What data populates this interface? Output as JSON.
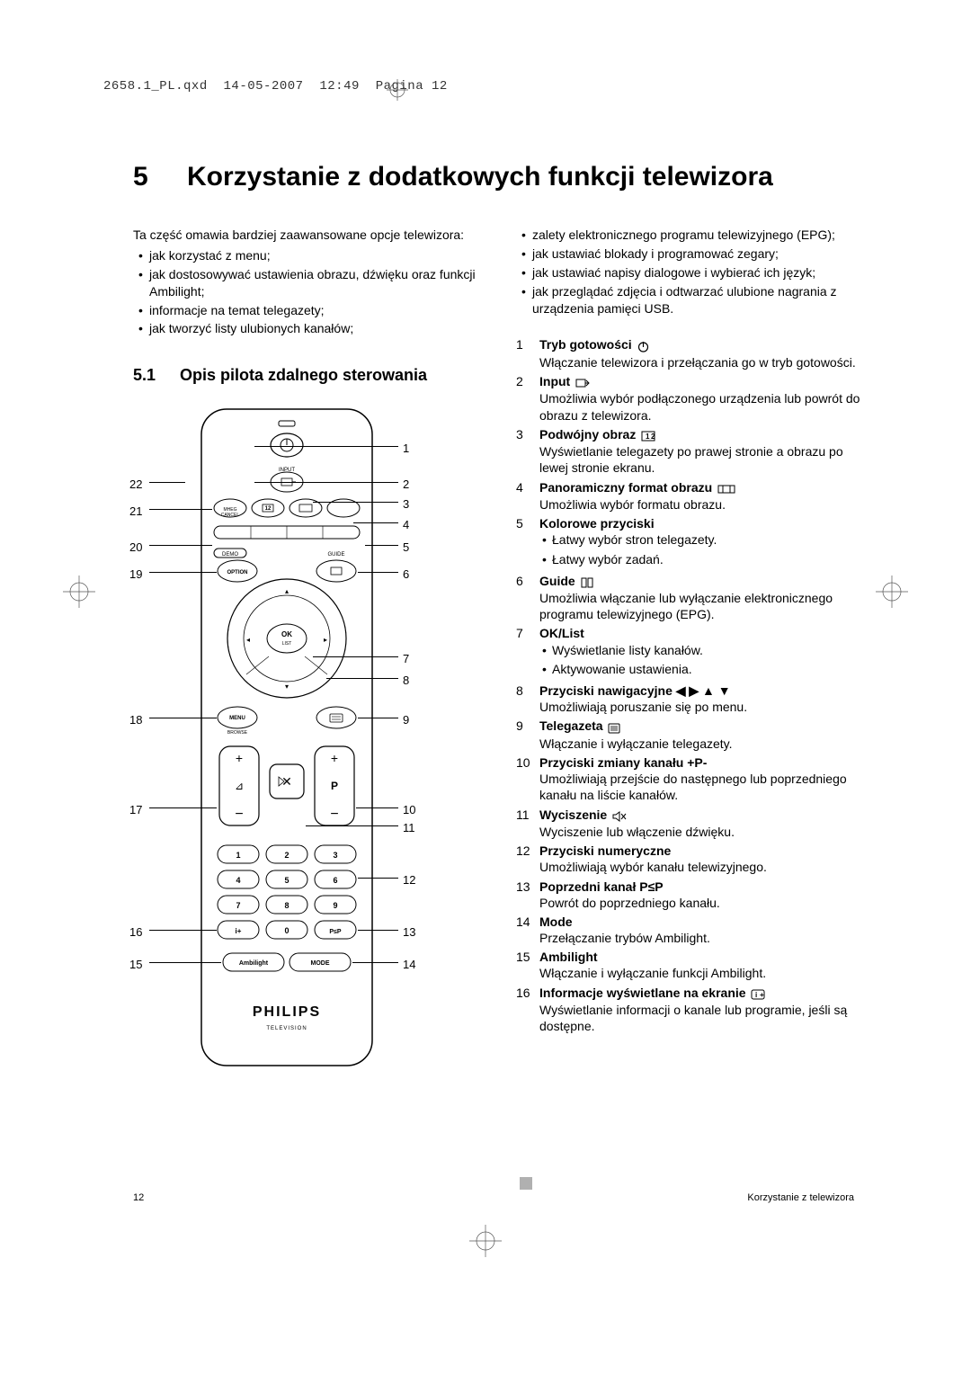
{
  "header": {
    "filename": "2658.1_PL.qxd",
    "date": "14-05-2007",
    "time": "12:49",
    "page_label": "Pagina 12"
  },
  "chapter": {
    "number": "5",
    "title": "Korzystanie z dodatkowych funkcji telewizora"
  },
  "intro": {
    "lead": "Ta część omawia bardziej zaawansowane opcje telewizora:",
    "left_bullets": [
      "jak korzystać z menu;",
      "jak dostosowywać ustawienia obrazu, dźwięku oraz funkcji Ambilight;",
      "informacje na temat telegazety;",
      "jak tworzyć listy ulubionych kanałów;"
    ],
    "right_bullets": [
      "zalety elektronicznego programu telewizyjnego (EPG);",
      "jak ustawiać blokady i programować zegary;",
      "jak ustawiać napisy dialogowe i wybierać ich język;",
      "jak przeglądać zdjęcia i odtwarzać ulubione nagrania z urządzenia pamięci USB."
    ]
  },
  "section": {
    "number": "5.1",
    "title": "Opis pilota zdalnego sterowania"
  },
  "remote": {
    "brand": "PHILIPS",
    "sublabel": "TELEVISION",
    "callouts_right": [
      "1",
      "2",
      "3",
      "4",
      "5",
      "6",
      "7",
      "8",
      "9",
      "10",
      "11",
      "12",
      "13",
      "14"
    ],
    "callouts_left": [
      "22",
      "21",
      "20",
      "19",
      "18",
      "17",
      "16",
      "15"
    ]
  },
  "descriptions": [
    {
      "n": "1",
      "title": "Tryb gotowości",
      "icon": "power",
      "text": "Włączanie telewizora i przełączania go w tryb gotowości."
    },
    {
      "n": "2",
      "title": "Input",
      "icon": "input",
      "text": "Umożliwia wybór podłączonego urządzenia lub powrót do obrazu z telewizora."
    },
    {
      "n": "3",
      "title": "Podwójny obraz",
      "icon": "dual",
      "text": "Wyświetlanie telegazety po prawej stronie a obrazu po lewej stronie ekranu."
    },
    {
      "n": "4",
      "title": "Panoramiczny format obrazu",
      "icon": "wide",
      "text": "Umożliwia wybór formatu obrazu."
    },
    {
      "n": "5",
      "title": "Kolorowe przyciski",
      "sub": [
        "Łatwy wybór stron telegazety.",
        "Łatwy wybór zadań."
      ]
    },
    {
      "n": "6",
      "title": "Guide",
      "icon": "guide",
      "text": "Umożliwia włączanie lub wyłączanie elektronicznego programu telewizyjnego (EPG)."
    },
    {
      "n": "7",
      "title": "OK/List",
      "sub": [
        "Wyświetlanie listy kanałów.",
        "Aktywowanie ustawienia."
      ]
    },
    {
      "n": "8",
      "title": "Przyciski nawigacyjne ◀ ▶ ▲ ▼",
      "text": "Umożliwiają poruszanie się po menu."
    },
    {
      "n": "9",
      "title": "Telegazeta",
      "icon": "teletext",
      "text": "Włączanie i wyłączanie telegazety."
    },
    {
      "n": "10",
      "title": "Przyciski zmiany kanału +P-",
      "text": "Umożliwiają przejście do następnego lub poprzedniego kanału na liście kanałów."
    },
    {
      "n": "11",
      "title": "Wyciszenie",
      "icon": "mute",
      "text": "Wyciszenie lub włączenie dźwięku."
    },
    {
      "n": "12",
      "title": "Przyciski numeryczne",
      "text": "Umożliwiają wybór kanału telewizyjnego."
    },
    {
      "n": "13",
      "title": "Poprzedni kanał P≤P",
      "text": "Powrót do poprzedniego kanału."
    },
    {
      "n": "14",
      "title": "Mode",
      "text": "Przełączanie trybów Ambilight."
    },
    {
      "n": "15",
      "title": "Ambilight",
      "text": "Włączanie i wyłączanie funkcji Ambilight."
    },
    {
      "n": "16",
      "title": "Informacje wyświetlane na ekranie",
      "icon": "info",
      "text": "Wyświetlanie informacji o kanale lub programie, jeśli są dostępne."
    }
  ],
  "footer": {
    "page": "12",
    "right": "Korzystanie z telewizora"
  },
  "colors": {
    "text": "#000000",
    "bg": "#ffffff",
    "gray": "#b0b0b0",
    "line": "#999999"
  },
  "fonts": {
    "body_size": 14,
    "h1_size": 30,
    "h2_size": 18,
    "mono_size": 14,
    "footer_size": 11
  }
}
